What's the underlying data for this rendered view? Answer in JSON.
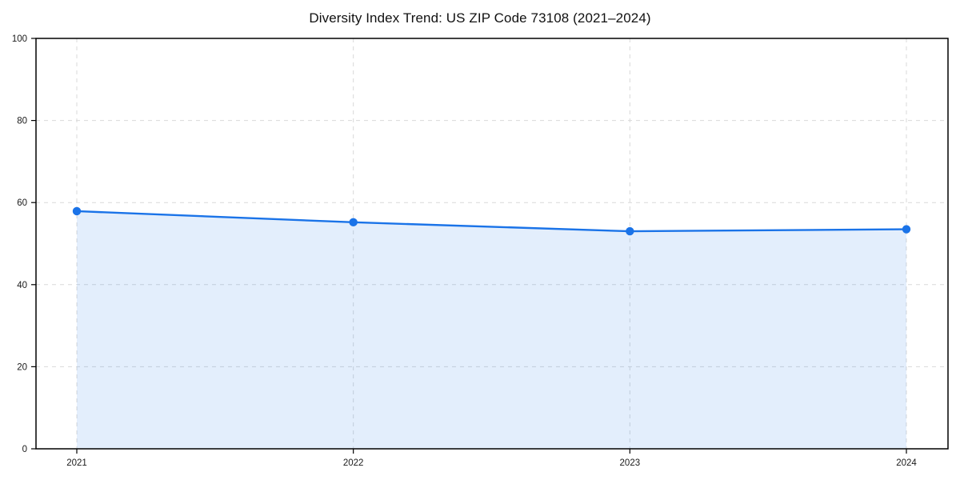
{
  "chart_data": {
    "type": "area",
    "title": "Diversity Index Trend: US ZIP Code 73108 (2021–2024)",
    "xlabel": "",
    "ylabel": "",
    "x": [
      "2021",
      "2022",
      "2023",
      "2024"
    ],
    "series": [
      {
        "name": "Diversity Index",
        "values": [
          57.9,
          55.2,
          53.0,
          53.5
        ]
      }
    ],
    "ylim": [
      0,
      100
    ],
    "yticks": [
      0,
      20,
      40,
      60,
      80,
      100
    ],
    "grid": "dashed",
    "legend": "none",
    "colors": {
      "line": "#1a73e8",
      "marker": "#1a73e8",
      "fill": "#1a73e8",
      "fill_opacity": 0.12,
      "gridline": "#d9d9d9",
      "axis": "#000000",
      "tick_label": "#1a1a1a"
    }
  }
}
